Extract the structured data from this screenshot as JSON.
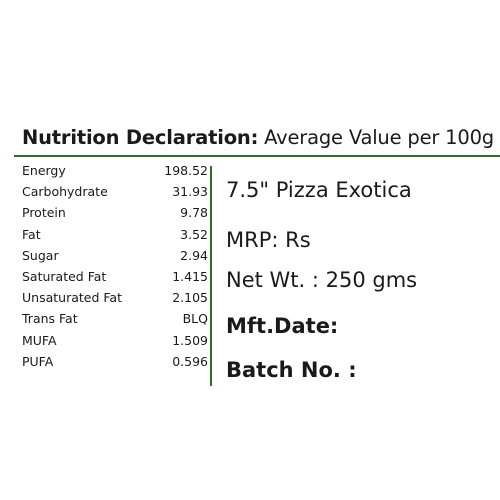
{
  "heading": {
    "bold": "Nutrition Declaration:",
    "rest": " Average Value per 100g"
  },
  "nutrients": [
    {
      "name": "Energy",
      "value": "198.52"
    },
    {
      "name": "Carbohydrate",
      "value": "31.93"
    },
    {
      "name": "Protein",
      "value": "9.78"
    },
    {
      "name": "Fat",
      "value": "3.52"
    },
    {
      "name": "Sugar",
      "value": "2.94"
    },
    {
      "name": "Saturated Fat",
      "value": "1.415"
    },
    {
      "name": "Unsaturated Fat",
      "value": "2.105"
    },
    {
      "name": "Trans Fat",
      "value": "BLQ"
    },
    {
      "name": "MUFA",
      "value": "1.509"
    },
    {
      "name": "PUFA",
      "value": "0.596"
    }
  ],
  "product": {
    "name": "7.5\" Pizza Exotica",
    "mrp": "MRP: Rs",
    "net_weight": "Net Wt. : 250 gms",
    "mfg_date": "Mft.Date:",
    "batch_no": "Batch No. :"
  },
  "colors": {
    "rule": "#2e6b2e",
    "text": "#1a1a1a"
  }
}
